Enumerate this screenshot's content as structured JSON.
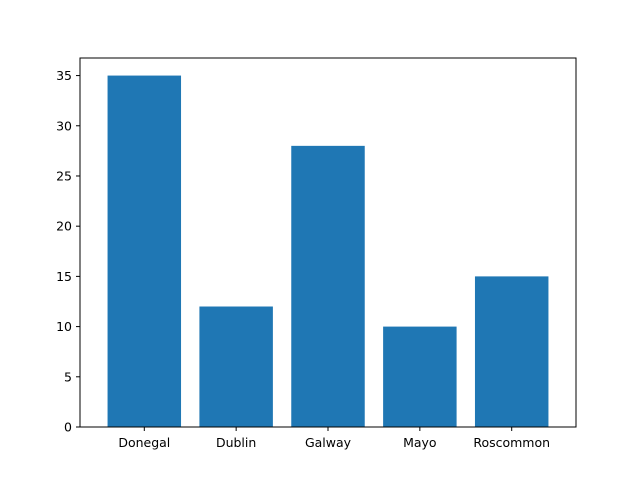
{
  "chart_data": {
    "type": "bar",
    "title": "",
    "xlabel": "",
    "ylabel": "",
    "categories": [
      "Donegal",
      "Dublin",
      "Galway",
      "Mayo",
      "Roscommon"
    ],
    "values": [
      35,
      12,
      28,
      10,
      15
    ],
    "ylim": [
      0,
      36.75
    ],
    "yticks": [
      0,
      5,
      10,
      15,
      20,
      25,
      30,
      35
    ],
    "grid": false,
    "legend": "none",
    "bar_color": "#1f77b4"
  }
}
